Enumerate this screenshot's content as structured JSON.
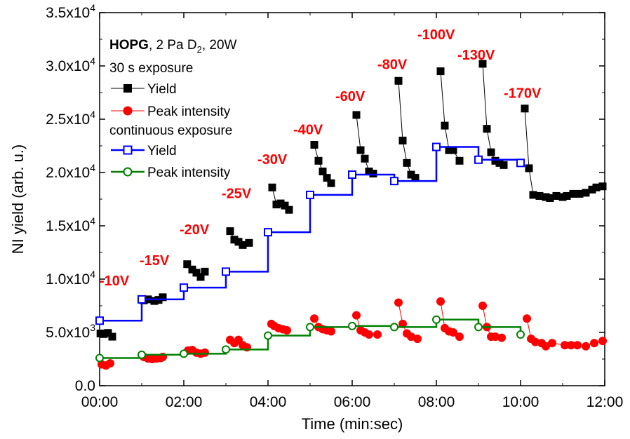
{
  "chart_data": {
    "type": "line",
    "xlabel": "Time (min:sec)",
    "ylabel": "NI yield (arb. u.)",
    "xlim": [
      0,
      12
    ],
    "ylim": [
      0,
      35000
    ],
    "x_ticks": [
      {
        "value": 0,
        "label": "00:00"
      },
      {
        "value": 2,
        "label": "02:00"
      },
      {
        "value": 4,
        "label": "04:00"
      },
      {
        "value": 6,
        "label": "06:00"
      },
      {
        "value": 8,
        "label": "08:00"
      },
      {
        "value": 10,
        "label": "10:00"
      },
      {
        "value": 12,
        "label": "12:00"
      }
    ],
    "y_ticks": [
      {
        "value": 0,
        "mant": "0.0",
        "exp": ""
      },
      {
        "value": 5000,
        "mant": "5.0x10",
        "exp": "3"
      },
      {
        "value": 10000,
        "mant": "1.0x10",
        "exp": "4"
      },
      {
        "value": 15000,
        "mant": "1.5x10",
        "exp": "4"
      },
      {
        "value": 20000,
        "mant": "2.0x10",
        "exp": "4"
      },
      {
        "value": 25000,
        "mant": "2.5x10",
        "exp": "4"
      },
      {
        "value": 30000,
        "mant": "3.0x10",
        "exp": "4"
      },
      {
        "value": 35000,
        "mant": "3.5x10",
        "exp": "4"
      }
    ],
    "legend": {
      "sample_bold": "HOPG",
      "sample_rest_a": ", 2 Pa D",
      "sample_sub": "2",
      "sample_rest_b": ", 20W",
      "group1": "30 s exposure",
      "group2": "continuous exposure",
      "placement": "top-left"
    },
    "series": [
      {
        "name": "Yield",
        "group": "30 s exposure",
        "style": "scatter-line",
        "marker": "filled-square",
        "color": "#000000",
        "segments": [
          [
            [
              0.02,
              4900
            ],
            [
              0.1,
              4850
            ],
            [
              0.2,
              4950
            ],
            [
              0.3,
              4600
            ]
          ],
          [
            [
              1.05,
              8000
            ],
            [
              1.15,
              8100
            ],
            [
              1.3,
              7950
            ],
            [
              1.4,
              8050
            ],
            [
              1.5,
              8300
            ]
          ],
          [
            [
              2.08,
              11400
            ],
            [
              2.2,
              10900
            ],
            [
              2.3,
              10600
            ],
            [
              2.4,
              10200
            ],
            [
              2.5,
              10700
            ]
          ],
          [
            [
              3.1,
              14500
            ],
            [
              3.2,
              13700
            ],
            [
              3.3,
              13500
            ],
            [
              3.4,
              13200
            ],
            [
              3.55,
              13400
            ]
          ],
          [
            [
              4.1,
              18600
            ],
            [
              4.2,
              17000
            ],
            [
              4.3,
              17100
            ],
            [
              4.4,
              16900
            ],
            [
              4.5,
              16500
            ]
          ],
          [
            [
              5.1,
              22600
            ],
            [
              5.2,
              21100
            ],
            [
              5.3,
              20100
            ],
            [
              5.4,
              19500
            ],
            [
              5.5,
              19000
            ]
          ],
          [
            [
              6.1,
              25400
            ],
            [
              6.2,
              22100
            ],
            [
              6.3,
              21300
            ],
            [
              6.4,
              20100
            ],
            [
              6.5,
              19900
            ]
          ],
          [
            [
              7.1,
              28600
            ],
            [
              7.2,
              23000
            ],
            [
              7.3,
              20900
            ],
            [
              7.4,
              19800
            ],
            [
              7.5,
              19500
            ]
          ],
          [
            [
              8.1,
              29500
            ],
            [
              8.2,
              24400
            ],
            [
              8.3,
              22100
            ],
            [
              8.4,
              22100
            ],
            [
              8.55,
              21100
            ]
          ],
          [
            [
              9.1,
              30200
            ],
            [
              9.2,
              24100
            ],
            [
              9.3,
              21900
            ],
            [
              9.4,
              21100
            ],
            [
              9.5,
              20900
            ],
            [
              9.6,
              20700
            ]
          ],
          [
            [
              10.1,
              26000
            ],
            [
              10.2,
              20400
            ],
            [
              10.3,
              17900
            ],
            [
              10.45,
              17800
            ],
            [
              10.6,
              17700
            ],
            [
              10.7,
              17600
            ],
            [
              10.85,
              17800
            ],
            [
              11.0,
              17700
            ],
            [
              11.1,
              17800
            ],
            [
              11.25,
              18000
            ],
            [
              11.4,
              18000
            ],
            [
              11.55,
              18100
            ],
            [
              11.7,
              18400
            ],
            [
              11.8,
              18600
            ],
            [
              11.95,
              18700
            ]
          ]
        ]
      },
      {
        "name": "Peak intensity",
        "group": "30 s exposure",
        "style": "scatter-line",
        "marker": "filled-circle",
        "color": "#ff0000",
        "segments": [
          [
            [
              0.05,
              2000
            ],
            [
              0.15,
              1900
            ],
            [
              0.25,
              2100
            ]
          ],
          [
            [
              1.05,
              2700
            ],
            [
              1.15,
              2550
            ],
            [
              1.25,
              2500
            ],
            [
              1.35,
              2550
            ],
            [
              1.45,
              2600
            ],
            [
              1.5,
              2700
            ]
          ],
          [
            [
              2.1,
              3300
            ],
            [
              2.2,
              3350
            ],
            [
              2.3,
              3100
            ],
            [
              2.4,
              3000
            ],
            [
              2.5,
              3100
            ]
          ],
          [
            [
              3.1,
              4300
            ],
            [
              3.2,
              4000
            ],
            [
              3.3,
              4300
            ],
            [
              3.4,
              3800
            ],
            [
              3.5,
              3600
            ]
          ],
          [
            [
              4.08,
              5800
            ],
            [
              4.15,
              5600
            ],
            [
              4.25,
              5400
            ],
            [
              4.35,
              5300
            ],
            [
              4.45,
              5200
            ]
          ],
          [
            [
              5.1,
              6300
            ],
            [
              5.2,
              5500
            ],
            [
              5.3,
              5300
            ],
            [
              5.4,
              5200
            ],
            [
              5.5,
              5100
            ]
          ],
          [
            [
              6.1,
              6600
            ],
            [
              6.2,
              5200
            ],
            [
              6.3,
              5000
            ],
            [
              6.4,
              4800
            ],
            [
              6.6,
              4800
            ]
          ],
          [
            [
              7.1,
              7800
            ],
            [
              7.2,
              5800
            ],
            [
              7.3,
              4900
            ],
            [
              7.4,
              4600
            ],
            [
              7.55,
              4400
            ]
          ],
          [
            [
              8.1,
              7900
            ],
            [
              8.2,
              5400
            ],
            [
              8.3,
              5100
            ],
            [
              8.4,
              5000
            ],
            [
              8.55,
              4600
            ]
          ],
          [
            [
              9.1,
              7500
            ],
            [
              9.2,
              5500
            ],
            [
              9.3,
              4600
            ],
            [
              9.4,
              4600
            ],
            [
              9.55,
              4500
            ]
          ],
          [
            [
              10.15,
              6300
            ],
            [
              10.25,
              4400
            ],
            [
              10.35,
              4100
            ],
            [
              10.5,
              4000
            ],
            [
              10.6,
              3700
            ],
            [
              10.75,
              4000
            ],
            [
              11.05,
              3800
            ],
            [
              11.2,
              3800
            ],
            [
              11.35,
              3800
            ],
            [
              11.55,
              3700
            ],
            [
              11.75,
              4000
            ],
            [
              11.95,
              4200
            ]
          ]
        ]
      },
      {
        "name": "Yield",
        "group": "continuous exposure",
        "style": "step-line",
        "marker": "open-square",
        "color": "#0000ff",
        "points": [
          [
            0,
            6100
          ],
          [
            1,
            8100
          ],
          [
            2,
            9200
          ],
          [
            3,
            10700
          ],
          [
            4,
            14400
          ],
          [
            5,
            17900
          ],
          [
            6,
            19800
          ],
          [
            7,
            19200
          ],
          [
            8,
            22400
          ],
          [
            9,
            21200
          ],
          [
            10,
            20900
          ]
        ]
      },
      {
        "name": "Peak intensity",
        "group": "continuous exposure",
        "style": "step-line",
        "marker": "open-circle",
        "color": "#008000",
        "points": [
          [
            0,
            2600
          ],
          [
            1,
            2900
          ],
          [
            2,
            3000
          ],
          [
            3,
            3400
          ],
          [
            4,
            4700
          ],
          [
            5,
            5500
          ],
          [
            6,
            5600
          ],
          [
            7,
            5500
          ],
          [
            8,
            6200
          ],
          [
            9,
            5500
          ],
          [
            10,
            4800
          ]
        ]
      }
    ],
    "annotations": [
      {
        "text": "-10V",
        "x": 0.0,
        "y": 9400,
        "color": "#ff0000"
      },
      {
        "text": "-15V",
        "x": 0.95,
        "y": 11300,
        "color": "#ff0000"
      },
      {
        "text": "-20V",
        "x": 1.9,
        "y": 14200,
        "color": "#ff0000"
      },
      {
        "text": "-25V",
        "x": 2.9,
        "y": 17600,
        "color": "#ff0000"
      },
      {
        "text": "-30V",
        "x": 3.75,
        "y": 20800,
        "color": "#ff0000"
      },
      {
        "text": "-40V",
        "x": 4.6,
        "y": 23600,
        "color": "#ff0000"
      },
      {
        "text": "-60V",
        "x": 5.6,
        "y": 26700,
        "color": "#ff0000"
      },
      {
        "text": "-80V",
        "x": 6.6,
        "y": 29700,
        "color": "#ff0000"
      },
      {
        "text": "-100V",
        "x": 7.55,
        "y": 32500,
        "color": "#ff0000"
      },
      {
        "text": "-130V",
        "x": 8.5,
        "y": 30600,
        "color": "#ff0000"
      },
      {
        "text": "-170V",
        "x": 9.6,
        "y": 27000,
        "color": "#ff0000"
      }
    ]
  }
}
